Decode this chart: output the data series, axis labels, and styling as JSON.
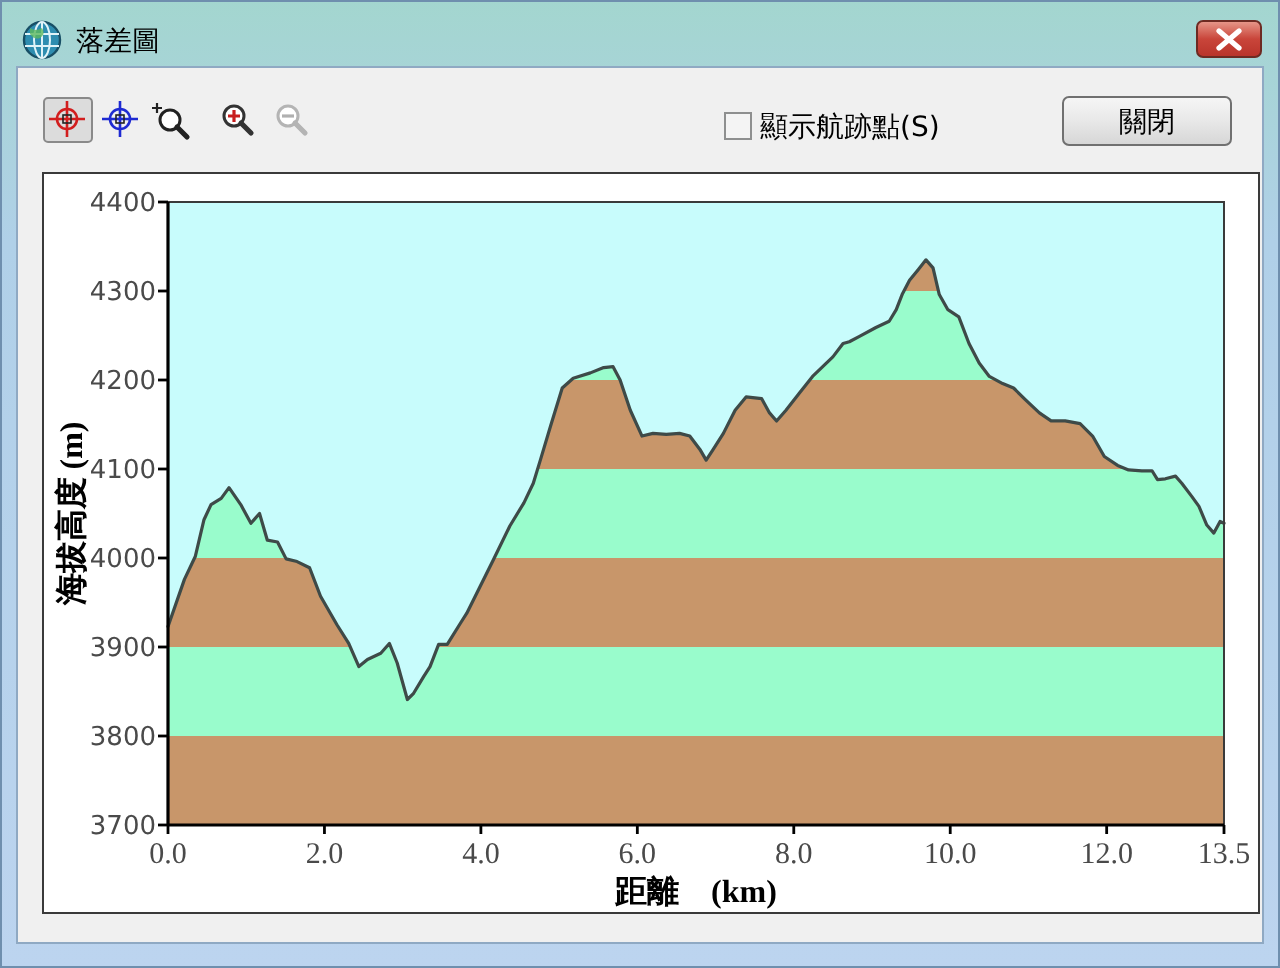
{
  "chart_data": {
    "type": "line",
    "title": "落差圖",
    "xlabel": "距離　(km)",
    "ylabel": "海拔高度 (m)",
    "xlim": [
      0,
      13.5
    ],
    "xticks": [
      {
        "value": 0,
        "label": "0.0"
      },
      {
        "value": 2,
        "label": "2.0"
      },
      {
        "value": 4,
        "label": "4.0"
      },
      {
        "value": 6,
        "label": "6.0"
      },
      {
        "value": 8,
        "label": "8.0"
      },
      {
        "value": 10,
        "label": "10.0"
      },
      {
        "value": 12,
        "label": "12.0"
      },
      13.5
    ],
    "ylim": [
      3700,
      4400
    ],
    "yticks": [
      3700,
      3800,
      3900,
      4000,
      4100,
      4200,
      4300,
      4400
    ],
    "bands": [
      {
        "axis": "y",
        "from": 3700,
        "to": 3800,
        "color": "#c8966a"
      },
      {
        "axis": "y",
        "from": 3800,
        "to": 3900,
        "color": "#99fccc"
      },
      {
        "axis": "y",
        "from": 3900,
        "to": 4000,
        "color": "#c8966a"
      },
      {
        "axis": "y",
        "from": 4000,
        "to": 4100,
        "color": "#99fccc"
      },
      {
        "axis": "y",
        "from": 4100,
        "to": 4200,
        "color": "#c8966a"
      },
      {
        "axis": "y",
        "from": 4200,
        "to": 4300,
        "color": "#99fccc"
      },
      {
        "axis": "y",
        "from": 4300,
        "to": 4400,
        "color": "#c8966a"
      }
    ],
    "annotations": [
      "顯示航跡點(S)",
      "關閉"
    ],
    "x": [
      0,
      0.21,
      0.35,
      0.46,
      0.55,
      0.68,
      0.78,
      0.93,
      1.06,
      1.17,
      1.27,
      1.4,
      1.51,
      1.65,
      1.81,
      1.95,
      2.16,
      2.31,
      2.44,
      2.55,
      2.72,
      2.83,
      2.93,
      3.06,
      3.14,
      3.27,
      3.35,
      3.46,
      3.57,
      3.74,
      3.82,
      3.99,
      4.16,
      4.37,
      4.55,
      4.67,
      4.76,
      4.89,
      5.04,
      5.18,
      5.4,
      5.57,
      5.69,
      5.78,
      5.91,
      6.06,
      6.2,
      6.37,
      6.54,
      6.67,
      6.8,
      6.88,
      6.97,
      7.1,
      7.25,
      7.39,
      7.59,
      7.69,
      7.78,
      7.9,
      8.07,
      8.24,
      8.37,
      8.5,
      8.63,
      8.71,
      8.84,
      9.05,
      9.22,
      9.31,
      9.39,
      9.48,
      9.59,
      9.69,
      9.78,
      9.86,
      9.97,
      10.11,
      10.24,
      10.37,
      10.5,
      10.67,
      10.81,
      10.96,
      11.14,
      11.29,
      11.47,
      11.66,
      11.82,
      11.97,
      12.14,
      12.28,
      12.45,
      12.58,
      12.65,
      12.75,
      12.88,
      12.96,
      13.09,
      13.18,
      13.28,
      13.37,
      13.45,
      13.5
    ],
    "series": [
      {
        "color": "#3e4a48",
        "values": [
          3923,
          3976,
          4002,
          4043,
          4060,
          4067,
          4079,
          4060,
          4039,
          4050,
          4020,
          4018,
          3999,
          3996,
          3989,
          3957,
          3925,
          3904,
          3878,
          3886,
          3893,
          3904,
          3882,
          3841,
          3848,
          3867,
          3878,
          3903,
          3903,
          3927,
          3938,
          3968,
          3998,
          4036,
          4062,
          4084,
          4110,
          4148,
          4191,
          4202,
          4208,
          4214,
          4215,
          4200,
          4166,
          4137,
          4140,
          4139,
          4140,
          4137,
          4122,
          4110,
          4122,
          4140,
          4166,
          4181,
          4179,
          4163,
          4154,
          4166,
          4185,
          4204,
          4215,
          4226,
          4241,
          4243,
          4249,
          4259,
          4266,
          4279,
          4297,
          4312,
          4324,
          4335,
          4326,
          4296,
          4279,
          4271,
          4241,
          4219,
          4204,
          4196,
          4191,
          4178,
          4163,
          4154,
          4154,
          4151,
          4137,
          4114,
          4104,
          4099,
          4098,
          4098,
          4088,
          4089,
          4092,
          4084,
          4069,
          4058,
          4037,
          4028,
          4041,
          4039
        ]
      }
    ]
  }
}
